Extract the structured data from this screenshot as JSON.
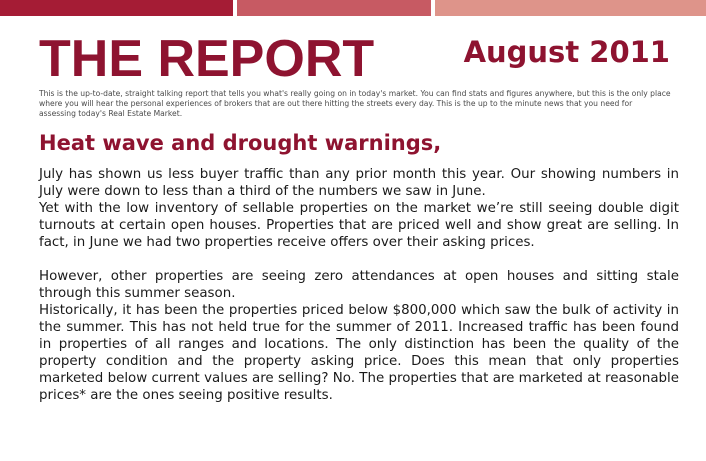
{
  "header": {
    "title": "THE REPORT",
    "date": "August 2011",
    "band_colors": [
      "#a51c35",
      "#c75a63",
      "#de948a"
    ]
  },
  "intro": "This is the up-to-date, straight talking report that tells you what's really going on in today's market.  You can find stats and figures anywhere, but this is the only place where you will hear the personal experiences of brokers that are out there hitting the streets every day.  This is the up to the minute news that you need for assessing today's Real Estate Market.",
  "article": {
    "headline": "Heat wave and drought warnings,",
    "paragraphs": [
      "July has shown us less buyer traffic than any prior month this year. Our showing numbers in July were down to less than a third of the numbers we saw in June.",
      "Yet with the low inventory of sellable properties on the market we’re still seeing double digit turnouts at certain open houses. Properties that are priced well and show great are selling. In fact, in June we had two properties receive offers over their asking prices.",
      "However, other properties are seeing zero attendances at open houses and sitting stale through this summer season.",
      "Historically, it has been the properties priced below $800,000 which saw the bulk of activity in the summer. This has not held true for the summer of 2011. Increased traffic has been found in properties of all ranges and locations. The only distinction has been the quality of the property condition and the property asking price. Does this mean that only properties marketed below current values are selling? No. The properties that are marketed at reasonable prices* are the ones seeing positive results."
    ]
  }
}
